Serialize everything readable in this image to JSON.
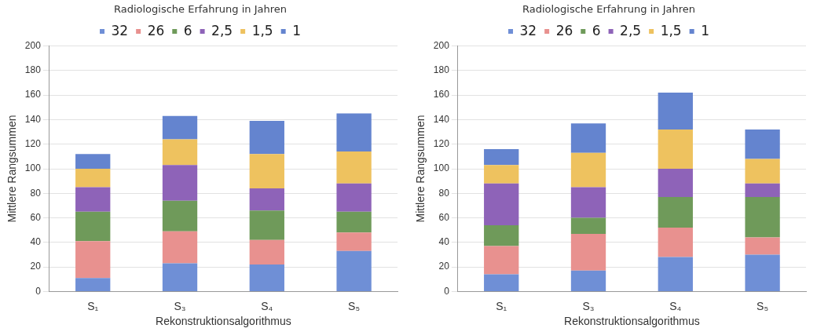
{
  "chart_data": [
    {
      "type": "bar",
      "stacked": true,
      "xlabel": "Rekonstruktionsalgorithmus",
      "ylabel": "Mittlere Rangsummen",
      "legend_title": "Radiologische Erfahrung in Jahren",
      "legend": "top",
      "grid": "y",
      "categories": [
        "S₁",
        "S₃",
        "S₄",
        "S₅"
      ],
      "ylim": [
        0,
        200
      ],
      "yticks": [
        0,
        20,
        40,
        60,
        80,
        100,
        120,
        140,
        160,
        180,
        200
      ],
      "series": [
        {
          "name": "32",
          "color": "#6f8fd6",
          "values": [
            11,
            23,
            22,
            33
          ]
        },
        {
          "name": "26",
          "color": "#e8918f",
          "values": [
            30,
            26,
            20,
            15
          ]
        },
        {
          "name": "6",
          "color": "#6f9a5a",
          "values": [
            24,
            25,
            24,
            17
          ]
        },
        {
          "name": "2,5",
          "color": "#8e63b8",
          "values": [
            20,
            29,
            18,
            23
          ]
        },
        {
          "name": "1,5",
          "color": "#eec25f",
          "values": [
            15,
            21,
            28,
            26
          ]
        },
        {
          "name": "1",
          "color": "#6484cf",
          "values": [
            12,
            19,
            27,
            31
          ]
        }
      ]
    },
    {
      "type": "bar",
      "stacked": true,
      "xlabel": "Rekonstruktionsalgorithmus",
      "ylabel": "Mittlere Rangsummen",
      "legend_title": "Radiologische Erfahrung in Jahren",
      "legend": "top",
      "grid": "y",
      "categories": [
        "S₁",
        "S₃",
        "S₄",
        "S₅"
      ],
      "ylim": [
        0,
        200
      ],
      "yticks": [
        0,
        20,
        40,
        60,
        80,
        100,
        120,
        140,
        160,
        180,
        200
      ],
      "series": [
        {
          "name": "32",
          "color": "#6f8fd6",
          "values": [
            14,
            17,
            28,
            30
          ]
        },
        {
          "name": "26",
          "color": "#e8918f",
          "values": [
            23,
            30,
            24,
            14
          ]
        },
        {
          "name": "6",
          "color": "#6f9a5a",
          "values": [
            17,
            13,
            25,
            33
          ]
        },
        {
          "name": "2,5",
          "color": "#8e63b8",
          "values": [
            34,
            25,
            23,
            11
          ]
        },
        {
          "name": "1,5",
          "color": "#eec25f",
          "values": [
            15,
            28,
            32,
            20
          ]
        },
        {
          "name": "1",
          "color": "#6484cf",
          "values": [
            13,
            24,
            30,
            24
          ]
        }
      ]
    }
  ]
}
